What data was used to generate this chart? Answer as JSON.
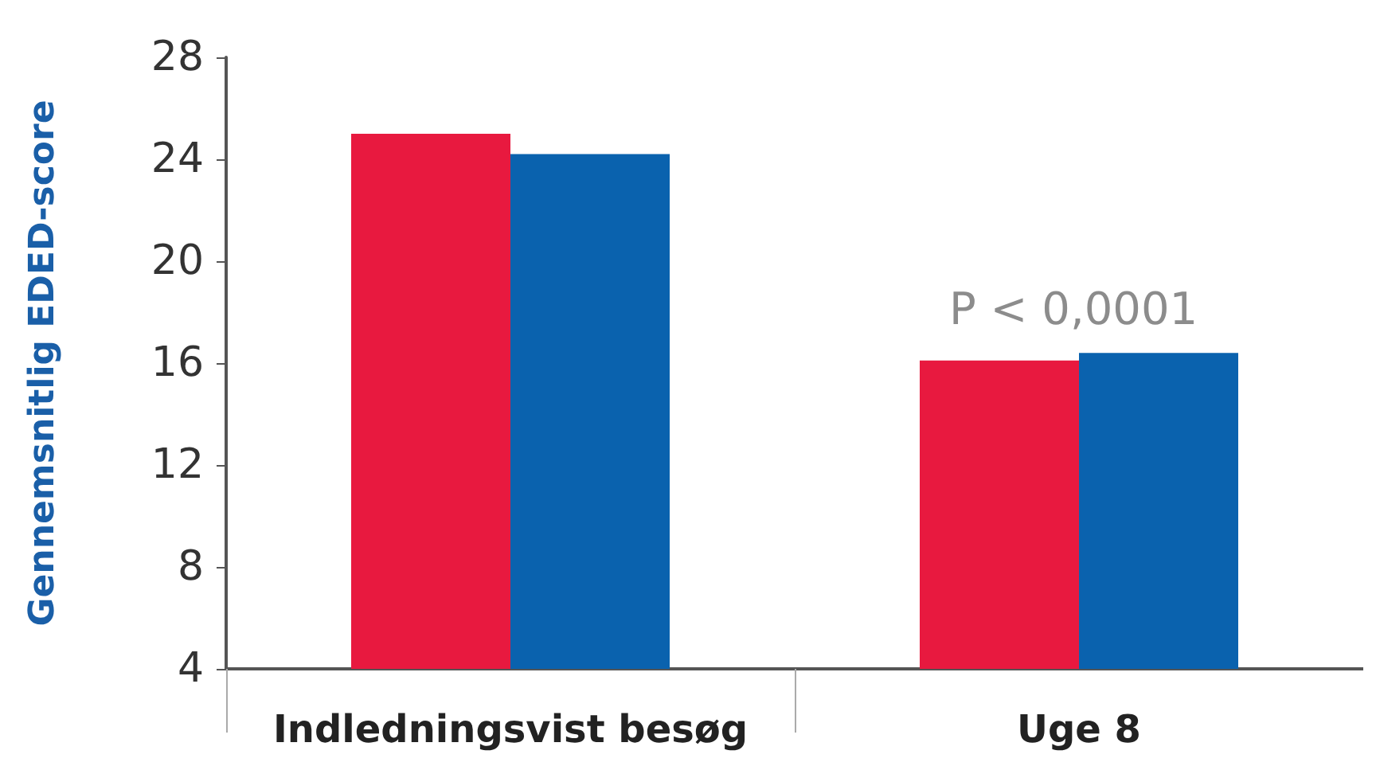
{
  "chart_data": {
    "type": "bar",
    "ylabel": "Gennemsnitlig EDED-score",
    "categories": [
      "Indledningsvist besøg",
      "Uge 8"
    ],
    "series": [
      {
        "color": "#e8193f",
        "values": [
          25.0,
          16.1
        ]
      },
      {
        "color": "#0a62ae",
        "values": [
          24.2,
          16.4
        ]
      }
    ],
    "ylim": [
      4,
      28
    ],
    "yticks": [
      4,
      8,
      12,
      16,
      20,
      24,
      28
    ],
    "grid": false,
    "annotations": [
      "P < 0,0001"
    ]
  }
}
